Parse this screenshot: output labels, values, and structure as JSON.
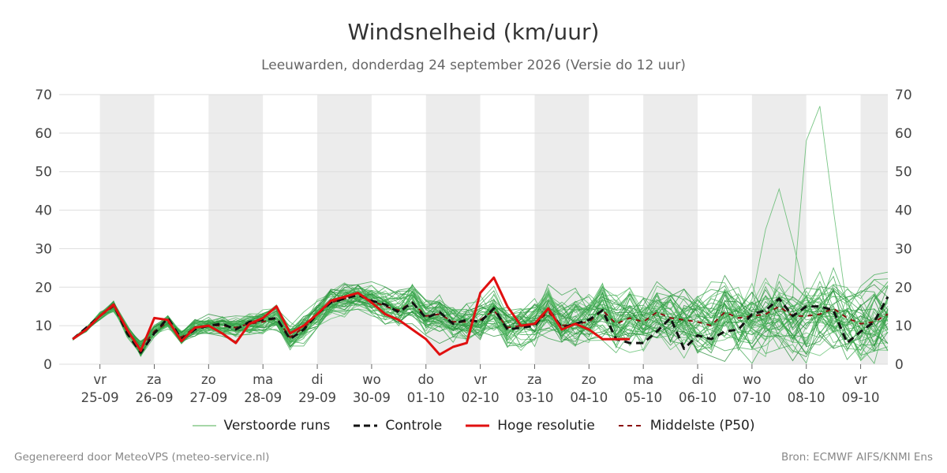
{
  "title": "Windsnelheid (km/uur)",
  "subtitle": "Leeuwarden, donderdag 24 september 2026 (Versie do 12 uur)",
  "footer_left": "Gegenereerd door MeteoVPS (meteo-service.nl)",
  "footer_right": "Bron: ECMWF AIFS/KNMI Ens",
  "legend": [
    {
      "label": "Verstoorde runs",
      "color": "#4caf50",
      "style": "thin"
    },
    {
      "label": "Controle",
      "color": "#111111",
      "style": "dashed"
    },
    {
      "label": "Hoge resolutie",
      "color": "#e01010",
      "style": "solid"
    },
    {
      "label": "Middelste (P50)",
      "color": "#8b1010",
      "style": "dashed"
    }
  ],
  "colors": {
    "ensemble": "#2e9e42",
    "control": "#111111",
    "hires": "#e01010",
    "median": "#8b1010",
    "shade": "#ececec",
    "grid": "#dddddd"
  },
  "chart_data": {
    "type": "line",
    "x_unit": "days from start (day 0 = 25-09 00:00)",
    "xlim": [
      -0.75,
      14.5
    ],
    "ylim": [
      0,
      70
    ],
    "yticks": [
      0,
      10,
      20,
      30,
      40,
      50,
      60,
      70
    ],
    "xtick_labels": [
      {
        "day": "vr",
        "date": "25-09"
      },
      {
        "day": "za",
        "date": "26-09"
      },
      {
        "day": "zo",
        "date": "27-09"
      },
      {
        "day": "ma",
        "date": "28-09"
      },
      {
        "day": "di",
        "date": "29-09"
      },
      {
        "day": "wo",
        "date": "30-09"
      },
      {
        "day": "do",
        "date": "01-10"
      },
      {
        "day": "vr",
        "date": "02-10"
      },
      {
        "day": "za",
        "date": "03-10"
      },
      {
        "day": "zo",
        "date": "04-10"
      },
      {
        "day": "ma",
        "date": "05-10"
      },
      {
        "day": "di",
        "date": "06-10"
      },
      {
        "day": "wo",
        "date": "07-10"
      },
      {
        "day": "do",
        "date": "08-10"
      },
      {
        "day": "vr",
        "date": "09-10"
      }
    ],
    "shaded_days": [
      0,
      2,
      4,
      6,
      8,
      10,
      12,
      14
    ],
    "series": [
      {
        "name": "Hoge resolutie",
        "x": [
          -0.5,
          -0.25,
          0,
          0.25,
          0.5,
          0.75,
          1,
          1.25,
          1.5,
          1.75,
          2,
          2.25,
          2.5,
          2.75,
          3,
          3.25,
          3.5,
          3.75,
          4,
          4.25,
          4.5,
          4.75,
          5,
          5.25,
          5.5,
          5.75,
          6,
          6.25,
          6.5,
          6.75,
          7,
          7.25,
          7.5,
          7.75,
          8,
          8.25,
          8.5,
          8.75,
          9,
          9.25,
          9.5,
          9.75
        ],
        "y": [
          6.5,
          9,
          12.5,
          15.5,
          9,
          3.5,
          12,
          11.5,
          6,
          9.5,
          10,
          8,
          5.5,
          10.5,
          12,
          15,
          8,
          10,
          13,
          16.5,
          17.5,
          18.5,
          16,
          13,
          11.5,
          9,
          6.5,
          2.5,
          4.5,
          5.5,
          18.5,
          22.5,
          15,
          10,
          10.5,
          14.5,
          9,
          10.5,
          9,
          6.5,
          6.5,
          6.5
        ]
      },
      {
        "name": "Controle",
        "x": [
          -0.5,
          -0.25,
          0,
          0.25,
          0.5,
          0.75,
          1,
          1.25,
          1.5,
          1.75,
          2,
          2.25,
          2.5,
          2.75,
          3,
          3.25,
          3.5,
          3.75,
          4,
          4.25,
          4.5,
          4.75,
          5,
          5.25,
          5.5,
          5.75,
          6,
          6.25,
          6.5,
          6.75,
          7,
          7.25,
          7.5,
          7.75,
          8,
          8.25,
          8.5,
          8.75,
          9,
          9.25,
          9.5,
          9.75,
          10,
          10.25,
          10.5,
          10.75,
          11,
          11.25,
          11.5,
          11.75,
          12,
          12.25,
          12.5,
          12.75,
          13,
          13.25,
          13.5,
          13.75,
          14,
          14.25,
          14.5
        ],
        "y": [
          6.5,
          9.5,
          12.5,
          15.5,
          8,
          3,
          8,
          12,
          6.5,
          9,
          10,
          10.5,
          9,
          11,
          11.5,
          12,
          6.5,
          9,
          13,
          16,
          17,
          18,
          16.5,
          15.5,
          13.5,
          16,
          12,
          13.5,
          10.5,
          11.5,
          11,
          14.5,
          9,
          9.5,
          10,
          14.5,
          9.5,
          10.5,
          11.5,
          14,
          6.5,
          5.5,
          5.5,
          8.5,
          12,
          4,
          7.5,
          6.5,
          8.5,
          9,
          13,
          14,
          17,
          12.5,
          15,
          15,
          14,
          5.5,
          8.5,
          11,
          17.5
        ]
      },
      {
        "name": "Middelste (P50)",
        "x": [
          -0.5,
          -0.25,
          0,
          0.25,
          0.5,
          0.75,
          1,
          1.25,
          1.5,
          1.75,
          2,
          2.25,
          2.5,
          2.75,
          3,
          3.25,
          3.5,
          3.75,
          4,
          4.25,
          4.5,
          4.75,
          5,
          5.25,
          5.5,
          5.75,
          6,
          6.25,
          6.5,
          6.75,
          7,
          7.25,
          7.5,
          7.75,
          8,
          8.25,
          8.5,
          8.75,
          9,
          9.25,
          9.5,
          9.75,
          10,
          10.25,
          10.5,
          10.75,
          11,
          11.25,
          11.5,
          11.75,
          12,
          12.25,
          12.5,
          12.75,
          13,
          13.25,
          13.5,
          13.75,
          14,
          14.25,
          14.5
        ],
        "y": [
          6.5,
          9,
          12.5,
          15,
          8.5,
          4,
          8.5,
          11,
          7,
          9.5,
          10,
          10,
          9.5,
          10.5,
          11,
          12,
          7,
          9.5,
          13,
          16,
          17,
          18,
          16.5,
          15,
          14,
          16,
          12.5,
          13,
          11,
          11,
          11.5,
          14,
          9.5,
          10,
          10.5,
          13.5,
          10,
          10.5,
          11,
          14,
          10.5,
          12,
          11,
          13.5,
          12,
          11.5,
          11,
          10,
          13.5,
          12,
          12.5,
          13,
          15,
          12.5,
          12.5,
          13,
          14.5,
          12,
          10.5,
          11,
          13
        ]
      }
    ]
  }
}
